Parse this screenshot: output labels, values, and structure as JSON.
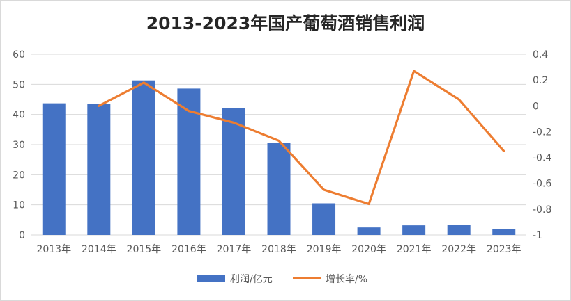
{
  "chart_data": {
    "type": "bar+line",
    "title": "2013-2023年国产葡萄酒销售利润",
    "categories": [
      "2013年",
      "2014年",
      "2015年",
      "2016年",
      "2017年",
      "2018年",
      "2019年",
      "2020年",
      "2021年",
      "2022年",
      "2023年"
    ],
    "series": [
      {
        "name": "利润/亿元",
        "type": "bar",
        "axis": "left",
        "values": [
          43.7,
          43.6,
          51.3,
          48.6,
          42.1,
          30.5,
          10.5,
          2.5,
          3.2,
          3.4,
          2.0
        ]
      },
      {
        "name": "增长率/%",
        "type": "line",
        "axis": "right",
        "values": [
          null,
          0.0,
          0.18,
          -0.04,
          -0.13,
          -0.27,
          -0.65,
          -0.76,
          0.27,
          0.05,
          -0.35
        ]
      }
    ],
    "left_axis": {
      "min": 0,
      "max": 60,
      "ticks": [
        "0",
        "10",
        "20",
        "30",
        "40",
        "50",
        "60"
      ]
    },
    "right_axis": {
      "min": -1,
      "max": 0.4,
      "ticks": [
        "-1",
        "-0.8",
        "-0.6",
        "-0.4",
        "-0.2",
        "0",
        "0.2",
        "0.4"
      ]
    },
    "grid": true,
    "legend": "bottom-center",
    "colors": {
      "bar": "#4472C4",
      "line": "#ED7D31",
      "grid": "#d9d9d9",
      "text": "#595959"
    }
  }
}
